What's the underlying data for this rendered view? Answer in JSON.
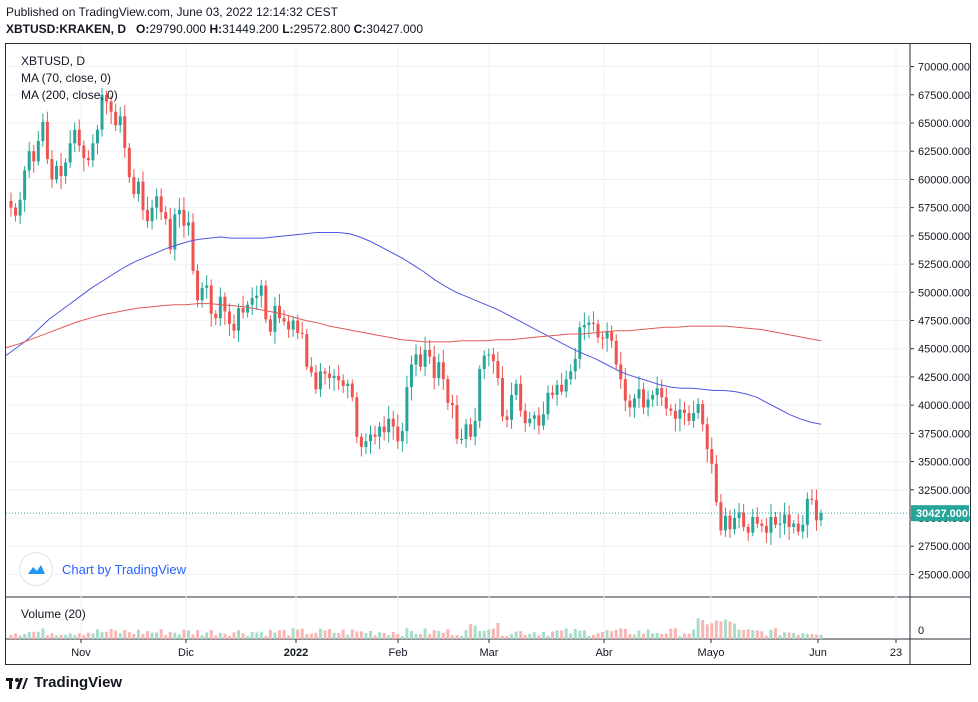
{
  "header": {
    "published": "Published on TradingView.com, June 03, 2022 12:14:32 CEST",
    "symbol": "XBTUSD:KRAKEN, D",
    "o_label": "O:",
    "o_value": "29790.000",
    "h_label": "H:",
    "h_value": "31449.200",
    "l_label": "L:",
    "l_value": "29572.800",
    "c_label": "C:",
    "c_value": "30427.000"
  },
  "legend": {
    "symbol": "XBTUSD, D",
    "ma70": "MA (70, close, 0)",
    "ma200": "MA (200, close, 0)"
  },
  "watermark": "Chart by TradingView",
  "footer_brand": "TradingView",
  "last_price_label": "30427.000",
  "volume_label": "Volume (20)",
  "volume_zero_label": "0",
  "colors": {
    "up": "#26a69a",
    "down": "#ef5350",
    "ma70": "#5157e0",
    "ma200": "#e05a57",
    "last": "#26a69a",
    "grid": "#eef1f5"
  },
  "chart_data": {
    "type": "candlestick",
    "title": "XBTUSD, D",
    "ylim": [
      23000,
      72000
    ],
    "y_ticks": [
      "25000.000",
      "27500.000",
      "30000.000",
      "32500.000",
      "35000.000",
      "37500.000",
      "40000.000",
      "42500.000",
      "45000.000",
      "47500.000",
      "50000.000",
      "52500.000",
      "55000.000",
      "57500.000",
      "60000.000",
      "62500.000",
      "65000.000",
      "67500.000",
      "70000.000"
    ],
    "x_ticks": [
      "Nov",
      "Dic",
      "2022",
      "Feb",
      "Mar",
      "Abr",
      "Mayo",
      "Jun",
      "23"
    ],
    "closes": [
      57500,
      56800,
      58200,
      60800,
      62500,
      61600,
      63400,
      65100,
      61800,
      60000,
      61200,
      60300,
      61500,
      63200,
      64400,
      63000,
      61900,
      61700,
      63200,
      64400,
      67500,
      66900,
      66000,
      64800,
      65600,
      62800,
      60200,
      58700,
      59800,
      57300,
      56300,
      57500,
      58500,
      57100,
      56500,
      53800,
      56900,
      57300,
      55900,
      56200,
      51900,
      49300,
      50400,
      50600,
      48100,
      47700,
      49600,
      48300,
      47200,
      46600,
      48600,
      48200,
      48900,
      49500,
      49700,
      50600,
      47600,
      46500,
      48800,
      47700,
      47400,
      46700,
      47500,
      46400,
      46300,
      43400,
      42900,
      41400,
      43000,
      42800,
      42400,
      42600,
      42200,
      41700,
      41900,
      40700,
      37200,
      36300,
      36800,
      37400,
      37200,
      38100,
      37600,
      38800,
      38100,
      36800,
      37700,
      41600,
      43600,
      44500,
      43400,
      44900,
      44300,
      42400,
      43800,
      42300,
      40200,
      40000,
      37000,
      37000,
      38300,
      37200,
      38600,
      43200,
      44400,
      44500,
      43900,
      42400,
      39000,
      38700,
      40900,
      41900,
      39500,
      38400,
      38800,
      39100,
      38200,
      39200,
      41100,
      40900,
      41800,
      41200,
      42300,
      43000,
      44100,
      46900,
      47100,
      47300,
      47200,
      46000,
      45900,
      46500,
      45700,
      43600,
      42300,
      40400,
      39800,
      40600,
      41400,
      39800,
      40500,
      40900,
      41500,
      40700,
      39700,
      39500,
      38800,
      39600,
      39300,
      38600,
      39300,
      40100,
      38300,
      36100,
      34800,
      31400,
      28900,
      30200,
      29000,
      30000,
      30500,
      29200,
      28700,
      30100,
      29500,
      29300,
      28700,
      30100,
      29400,
      29500,
      30300,
      29200,
      29500,
      28800,
      29400,
      31700,
      31600,
      29800,
      30427
    ],
    "ma70": [
      44400,
      45100,
      45800,
      46700,
      47600,
      48300,
      49000,
      49700,
      50400,
      51000,
      51600,
      52200,
      52700,
      53100,
      53500,
      53900,
      54200,
      54500,
      54700,
      54800,
      54900,
      54800,
      54800,
      54800,
      54800,
      54900,
      55000,
      55100,
      55200,
      55300,
      55300,
      55300,
      55200,
      54900,
      54500,
      54000,
      53500,
      53000,
      52400,
      51800,
      51100,
      50500,
      50000,
      49600,
      49200,
      48800,
      48400,
      47900,
      47400,
      46900,
      46400,
      45900,
      45400,
      44900,
      44500,
      44100,
      43600,
      43100,
      42700,
      42400,
      42100,
      41800,
      41600,
      41500,
      41500,
      41400,
      41300,
      41300,
      41200,
      41000,
      40700,
      40200,
      39700,
      39200,
      38800,
      38500,
      38300
    ],
    "ma200": [
      45100,
      45400,
      45800,
      46200,
      46600,
      47000,
      47400,
      47700,
      48000,
      48200,
      48400,
      48600,
      48700,
      48800,
      48900,
      48900,
      49000,
      49000,
      48900,
      48800,
      48700,
      48500,
      48300,
      48100,
      47800,
      47500,
      47300,
      47000,
      46800,
      46600,
      46400,
      46200,
      46000,
      45800,
      45700,
      45600,
      45600,
      45600,
      45700,
      45700,
      45700,
      45800,
      45800,
      45900,
      46000,
      46100,
      46200,
      46300,
      46300,
      46400,
      46500,
      46600,
      46600,
      46700,
      46800,
      46900,
      46900,
      47000,
      47000,
      47000,
      47000,
      46900,
      46800,
      46700,
      46500,
      46300,
      46100,
      45900,
      45700
    ],
    "volume_ylim": [
      0,
      5
    ]
  }
}
